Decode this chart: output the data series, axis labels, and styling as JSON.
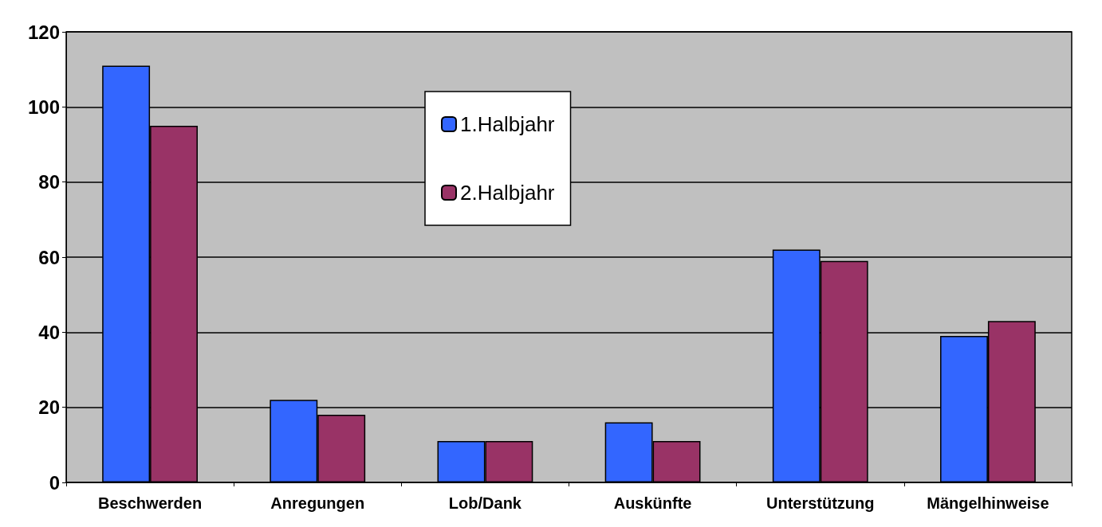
{
  "chart_data": {
    "type": "bar",
    "categories": [
      "Beschwerden",
      "Anregungen",
      "Lob/Dank",
      "Auskünfte",
      "Unterstützung",
      "Mängelhinweise"
    ],
    "series": [
      {
        "name": "1.Halbjahr",
        "color": "#3366ff",
        "values": [
          111,
          22,
          11,
          16,
          62,
          39
        ]
      },
      {
        "name": "2.Halbjahr",
        "color": "#993366",
        "values": [
          95,
          18,
          11,
          11,
          59,
          43
        ]
      }
    ],
    "ylim": [
      0,
      120
    ],
    "yticks": [
      0,
      20,
      40,
      60,
      80,
      100,
      120
    ],
    "grid": "y",
    "legend": "top"
  }
}
